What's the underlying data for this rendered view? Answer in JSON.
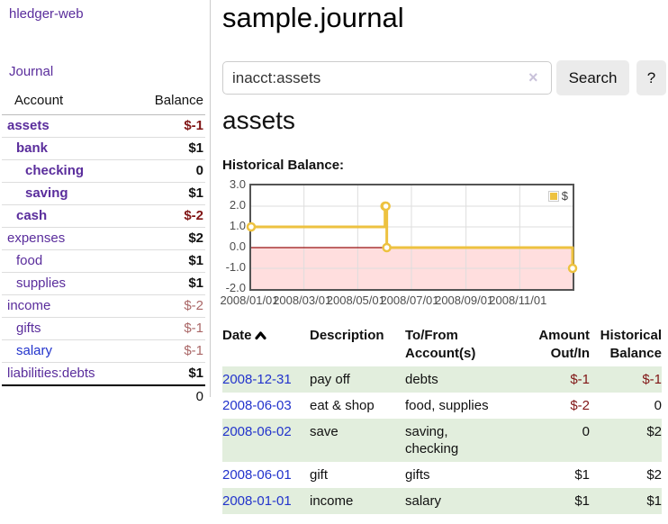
{
  "app": {
    "brand": "hledger-web"
  },
  "sidebar": {
    "journal_label": "Journal",
    "table": {
      "account_header": "Account",
      "balance_header": "Balance",
      "accounts": [
        {
          "name": "assets",
          "indent": 1,
          "bold": true,
          "balance": "$-1",
          "balance_style": "neg-strong"
        },
        {
          "name": "bank",
          "indent": 2,
          "bold": true,
          "balance": "$1",
          "balance_style": ""
        },
        {
          "name": "checking",
          "indent": 3,
          "bold": true,
          "balance": "0",
          "balance_style": ""
        },
        {
          "name": "saving",
          "indent": 3,
          "bold": true,
          "balance": "$1",
          "balance_style": ""
        },
        {
          "name": "cash",
          "indent": 2,
          "bold": true,
          "balance": "$-2",
          "balance_style": "neg-strong"
        },
        {
          "name": "expenses",
          "indent": 1,
          "bold": false,
          "balance": "$2",
          "balance_style": ""
        },
        {
          "name": "food",
          "indent": 2,
          "bold": false,
          "balance": "$1",
          "balance_style": ""
        },
        {
          "name": "supplies",
          "indent": 2,
          "bold": false,
          "balance": "$1",
          "balance_style": ""
        },
        {
          "name": "income",
          "indent": 1,
          "bold": false,
          "balance": "$-2",
          "balance_style": "neg-muted"
        },
        {
          "name": "gifts",
          "indent": 2,
          "bold": false,
          "balance": "$-1",
          "balance_style": "neg-muted"
        },
        {
          "name": "salary",
          "indent": 2,
          "bold": false,
          "balance": "$-1",
          "balance_style": "neg-muted",
          "link_color": "blue"
        },
        {
          "name": "liabilities:debts",
          "indent": 1,
          "bold": false,
          "balance": "$1",
          "balance_style": ""
        }
      ],
      "total": "0"
    }
  },
  "header": {
    "title": "sample.journal"
  },
  "search": {
    "query": "inacct:assets",
    "clear_icon": "×",
    "button_label": "Search",
    "help_label": "?"
  },
  "account_page": {
    "heading": "assets",
    "chart_label": "Historical Balance:"
  },
  "chart_data": {
    "type": "line",
    "title": "Historical Balance:",
    "step": true,
    "x_range": [
      "2008-01-01",
      "2008-12-31"
    ],
    "series": [
      {
        "name": "$",
        "color": "#edc240",
        "points": [
          [
            "2008-01-01",
            1
          ],
          [
            "2008-06-01",
            2
          ],
          [
            "2008-06-02",
            2
          ],
          [
            "2008-06-03",
            0
          ],
          [
            "2008-12-31",
            -1
          ]
        ]
      }
    ],
    "x_tick_dates": [
      "2008-01-01",
      "2008-03-01",
      "2008-05-01",
      "2008-07-01",
      "2008-09-01",
      "2008-11-01"
    ],
    "x_tick_labels": [
      "2008/01/01",
      "2008/03/01",
      "2008/05/01",
      "2008/07/01",
      "2008/09/01",
      "2008/11/01"
    ],
    "y_ticks": [
      "3.0",
      "2.0",
      "1.0",
      "0.0",
      "-1.0",
      "-2.0"
    ],
    "ylim": [
      -2,
      3
    ],
    "grid": true,
    "legend": {
      "label": "$",
      "position": "top-right"
    },
    "line_color": "#edc240",
    "negative_region_color": "#ffdede",
    "zero_line_color": "#991111",
    "grid_color": "#dddddd"
  },
  "register": {
    "columns": [
      "Date",
      "Description",
      "To/From Account(s)",
      "Amount Out/In",
      "Historical Balance"
    ],
    "rows": [
      {
        "date": "2008-12-31",
        "description": "pay off",
        "accounts": "debts",
        "amount": "$-1",
        "amount_negative": true,
        "balance": "$-1",
        "balance_negative": true
      },
      {
        "date": "2008-06-03",
        "description": "eat & shop",
        "accounts": "food, supplies",
        "amount": "$-2",
        "amount_negative": true,
        "balance": "0",
        "balance_negative": false
      },
      {
        "date": "2008-06-02",
        "description": "save",
        "accounts": "saving,\nchecking",
        "amount": "0",
        "amount_negative": false,
        "balance": "$2",
        "balance_negative": false
      },
      {
        "date": "2008-06-01",
        "description": "gift",
        "accounts": "gifts",
        "amount": "$1",
        "amount_negative": false,
        "balance": "$2",
        "balance_negative": false
      },
      {
        "date": "2008-01-01",
        "description": "income",
        "accounts": "salary",
        "amount": "$1",
        "amount_negative": false,
        "balance": "$1",
        "balance_negative": false
      }
    ]
  }
}
